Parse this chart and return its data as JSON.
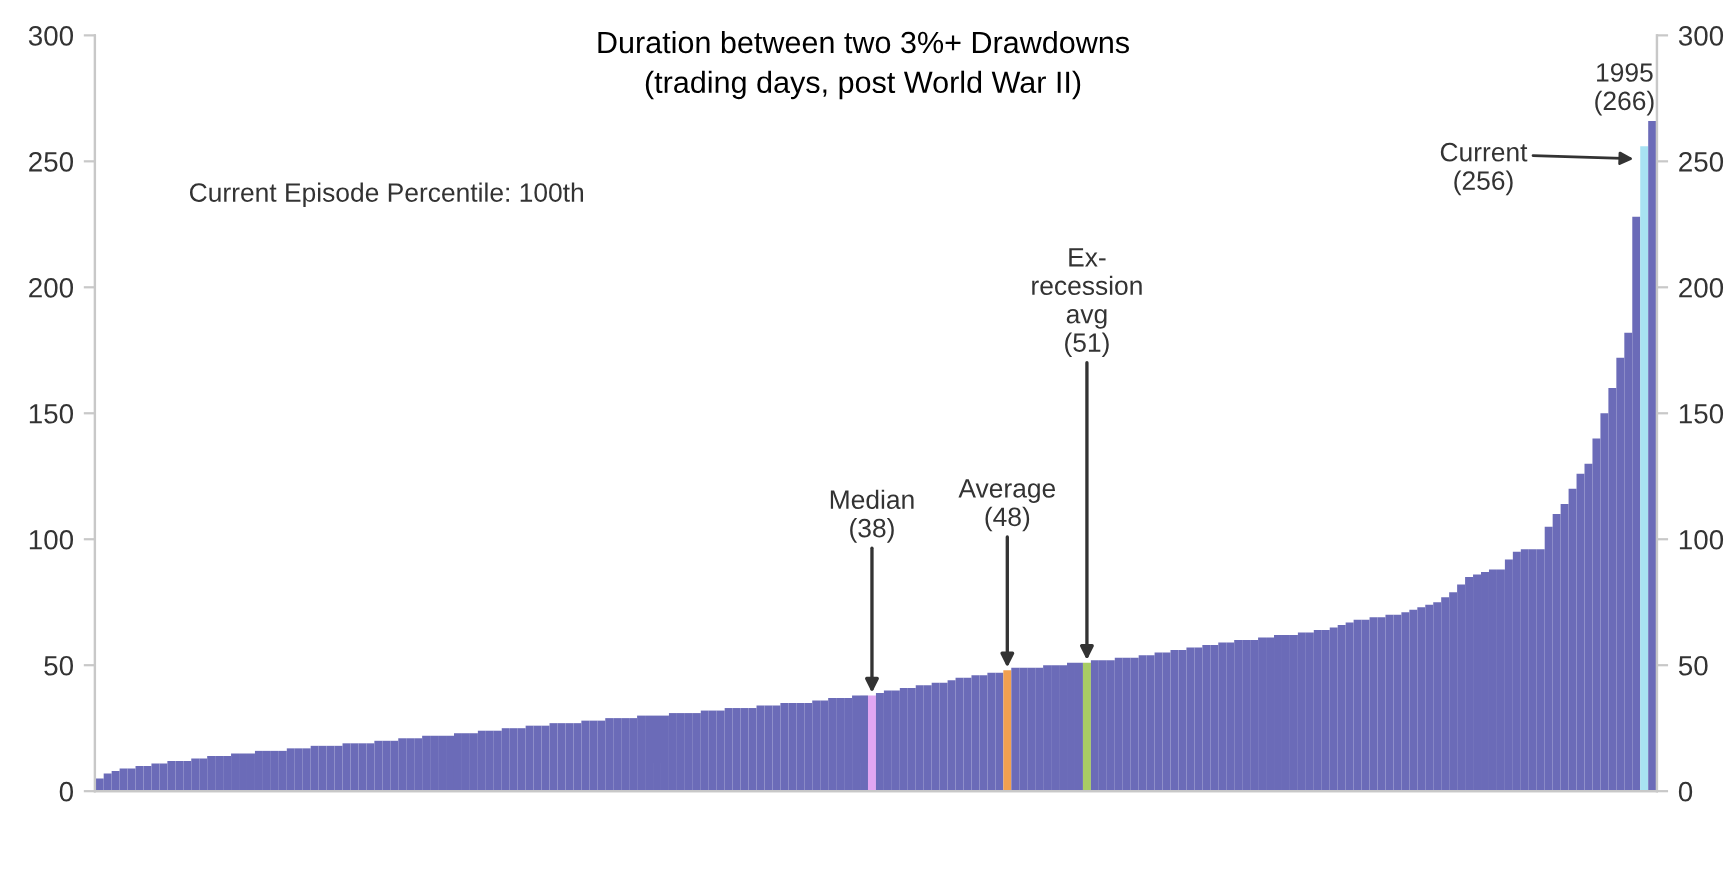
{
  "chart_data": {
    "type": "bar",
    "title": "Duration between two 3%+ Drawdowns",
    "subtitle": "(trading days, post World War II)",
    "categories": [
      null,
      null,
      null,
      null,
      null,
      null,
      null,
      null,
      null,
      null,
      null,
      null,
      null,
      null,
      null,
      null,
      null,
      null,
      null,
      null,
      null,
      null,
      null,
      null,
      null,
      null,
      null,
      null,
      null,
      null,
      null,
      null,
      null,
      null,
      null,
      null,
      null,
      null,
      null,
      null,
      null,
      null,
      null,
      null,
      null,
      null,
      null,
      null,
      null,
      null,
      null,
      null,
      null,
      null,
      null,
      null,
      null,
      null,
      null,
      null,
      null,
      null,
      null,
      null,
      null,
      null,
      null,
      null,
      null,
      null,
      null,
      null,
      null,
      null,
      null,
      null,
      null,
      null,
      null,
      null,
      null,
      null,
      null,
      null,
      null,
      null,
      null,
      null,
      null,
      null,
      null,
      null,
      null,
      null,
      null,
      null,
      null,
      null,
      null,
      null,
      null,
      null,
      null,
      null,
      null,
      null,
      null,
      null,
      null,
      null,
      null,
      null,
      null,
      null,
      null,
      null,
      null,
      null,
      null,
      null,
      null,
      null,
      null,
      null,
      null,
      null,
      null,
      null,
      null,
      null,
      null,
      null,
      null,
      null,
      null,
      null,
      null,
      null,
      null,
      null,
      null,
      null,
      null,
      null,
      null,
      null,
      null,
      null,
      null,
      null,
      null,
      null,
      null,
      null,
      null,
      null,
      null,
      null,
      null,
      null,
      null,
      null,
      null,
      null,
      null,
      null,
      null,
      null,
      null,
      null,
      null,
      null,
      null,
      null,
      null,
      null,
      null,
      null,
      null,
      null,
      null,
      null,
      null,
      null,
      null,
      null,
      null,
      null,
      null,
      null,
      null,
      null,
      null,
      null,
      null,
      null
    ],
    "values": [
      5,
      7,
      8,
      9,
      9,
      10,
      10,
      11,
      11,
      12,
      12,
      12,
      13,
      13,
      14,
      14,
      14,
      15,
      15,
      15,
      16,
      16,
      16,
      16,
      17,
      17,
      17,
      18,
      18,
      18,
      18,
      19,
      19,
      19,
      19,
      20,
      20,
      20,
      21,
      21,
      21,
      22,
      22,
      22,
      22,
      23,
      23,
      23,
      24,
      24,
      24,
      25,
      25,
      25,
      26,
      26,
      26,
      27,
      27,
      27,
      27,
      28,
      28,
      28,
      29,
      29,
      29,
      29,
      30,
      30,
      30,
      30,
      31,
      31,
      31,
      31,
      32,
      32,
      32,
      33,
      33,
      33,
      33,
      34,
      34,
      34,
      35,
      35,
      35,
      35,
      36,
      36,
      37,
      37,
      37,
      38,
      38,
      38,
      39,
      40,
      40,
      41,
      41,
      42,
      42,
      43,
      43,
      44,
      45,
      45,
      46,
      46,
      47,
      47,
      48,
      49,
      49,
      49,
      49,
      50,
      50,
      50,
      51,
      51,
      51,
      52,
      52,
      52,
      53,
      53,
      53,
      54,
      54,
      55,
      55,
      56,
      56,
      57,
      57,
      58,
      58,
      59,
      59,
      60,
      60,
      60,
      61,
      61,
      62,
      62,
      62,
      63,
      63,
      64,
      64,
      65,
      66,
      67,
      68,
      68,
      69,
      69,
      70,
      70,
      71,
      72,
      73,
      74,
      75,
      77,
      79,
      82,
      85,
      86,
      87,
      88,
      88,
      92,
      95,
      96,
      96,
      96,
      105,
      110,
      114,
      120,
      126,
      130,
      140,
      150,
      160,
      172,
      182,
      228,
      256,
      266
    ],
    "colors": [
      "#6b6bb8",
      "#6b6bb8",
      "#6b6bb8",
      "#6b6bb8",
      "#6b6bb8",
      "#6b6bb8",
      "#6b6bb8",
      "#6b6bb8",
      "#6b6bb8",
      "#6b6bb8",
      "#6b6bb8",
      "#6b6bb8",
      "#6b6bb8",
      "#6b6bb8",
      "#6b6bb8",
      "#6b6bb8",
      "#6b6bb8",
      "#6b6bb8",
      "#6b6bb8",
      "#6b6bb8",
      "#6b6bb8",
      "#6b6bb8",
      "#6b6bb8",
      "#6b6bb8",
      "#6b6bb8",
      "#6b6bb8",
      "#6b6bb8",
      "#6b6bb8",
      "#6b6bb8",
      "#6b6bb8",
      "#6b6bb8",
      "#6b6bb8",
      "#6b6bb8",
      "#6b6bb8",
      "#6b6bb8",
      "#6b6bb8",
      "#6b6bb8",
      "#6b6bb8",
      "#6b6bb8",
      "#6b6bb8",
      "#6b6bb8",
      "#6b6bb8",
      "#6b6bb8",
      "#6b6bb8",
      "#6b6bb8",
      "#6b6bb8",
      "#6b6bb8",
      "#6b6bb8",
      "#6b6bb8",
      "#6b6bb8",
      "#6b6bb8",
      "#6b6bb8",
      "#6b6bb8",
      "#6b6bb8",
      "#6b6bb8",
      "#6b6bb8",
      "#6b6bb8",
      "#6b6bb8",
      "#6b6bb8",
      "#6b6bb8",
      "#6b6bb8",
      "#6b6bb8",
      "#6b6bb8",
      "#6b6bb8",
      "#6b6bb8",
      "#6b6bb8",
      "#6b6bb8",
      "#6b6bb8",
      "#6b6bb8",
      "#6b6bb8",
      "#6b6bb8",
      "#6b6bb8",
      "#6b6bb8",
      "#6b6bb8",
      "#6b6bb8",
      "#6b6bb8",
      "#6b6bb8",
      "#6b6bb8",
      "#6b6bb8",
      "#6b6bb8",
      "#6b6bb8",
      "#6b6bb8",
      "#6b6bb8",
      "#6b6bb8",
      "#6b6bb8",
      "#6b6bb8",
      "#6b6bb8",
      "#6b6bb8",
      "#6b6bb8",
      "#6b6bb8",
      "#6b6bb8",
      "#6b6bb8",
      "#6b6bb8",
      "#6b6bb8",
      "#6b6bb8",
      "#6b6bb8",
      "#6b6bb8",
      "#e2a6f2",
      "#6b6bb8",
      "#6b6bb8",
      "#6b6bb8",
      "#6b6bb8",
      "#6b6bb8",
      "#6b6bb8",
      "#6b6bb8",
      "#6b6bb8",
      "#6b6bb8",
      "#6b6bb8",
      "#6b6bb8",
      "#6b6bb8",
      "#6b6bb8",
      "#6b6bb8",
      "#6b6bb8",
      "#6b6bb8",
      "#f2a050",
      "#6b6bb8",
      "#6b6bb8",
      "#6b6bb8",
      "#6b6bb8",
      "#6b6bb8",
      "#6b6bb8",
      "#6b6bb8",
      "#6b6bb8",
      "#6b6bb8",
      "#a8cc64",
      "#6b6bb8",
      "#6b6bb8",
      "#6b6bb8",
      "#6b6bb8",
      "#6b6bb8",
      "#6b6bb8",
      "#6b6bb8",
      "#6b6bb8",
      "#6b6bb8",
      "#6b6bb8",
      "#6b6bb8",
      "#6b6bb8",
      "#6b6bb8",
      "#6b6bb8",
      "#6b6bb8",
      "#6b6bb8",
      "#6b6bb8",
      "#6b6bb8",
      "#6b6bb8",
      "#6b6bb8",
      "#6b6bb8",
      "#6b6bb8",
      "#6b6bb8",
      "#6b6bb8",
      "#6b6bb8",
      "#6b6bb8",
      "#6b6bb8",
      "#6b6bb8",
      "#6b6bb8",
      "#6b6bb8",
      "#6b6bb8",
      "#6b6bb8",
      "#6b6bb8",
      "#6b6bb8",
      "#6b6bb8",
      "#6b6bb8",
      "#6b6bb8",
      "#6b6bb8",
      "#6b6bb8",
      "#6b6bb8",
      "#6b6bb8",
      "#6b6bb8",
      "#6b6bb8",
      "#6b6bb8",
      "#6b6bb8",
      "#6b6bb8",
      "#6b6bb8",
      "#6b6bb8",
      "#6b6bb8",
      "#6b6bb8",
      "#6b6bb8",
      "#6b6bb8",
      "#6b6bb8",
      "#6b6bb8",
      "#6b6bb8",
      "#6b6bb8",
      "#6b6bb8",
      "#6b6bb8",
      "#6b6bb8",
      "#6b6bb8",
      "#6b6bb8",
      "#6b6bb8",
      "#6b6bb8",
      "#6b6bb8",
      "#6b6bb8",
      "#6b6bb8",
      "#6b6bb8",
      "#6b6bb8",
      "#6b6bb8",
      "#a8e2f2",
      "#6b6bb8"
    ],
    "ylim": [
      0,
      300
    ],
    "yticks": [
      0,
      50,
      100,
      150,
      200,
      250,
      300
    ],
    "y2lim": [
      0,
      300
    ],
    "y2ticks": [
      0,
      50,
      100,
      150,
      200,
      250,
      300
    ],
    "grid": false,
    "legend": false,
    "annotations": [
      "Current Episode Percentile: 100th",
      {
        "text": "Median\n(38)",
        "y": 38
      },
      {
        "text": "Average\n(48)",
        "y": 48
      },
      {
        "text": "Ex-\nrecession\navg\n(51)",
        "y": 51
      },
      "Current\n(256)",
      "1995\n(266)"
    ]
  }
}
